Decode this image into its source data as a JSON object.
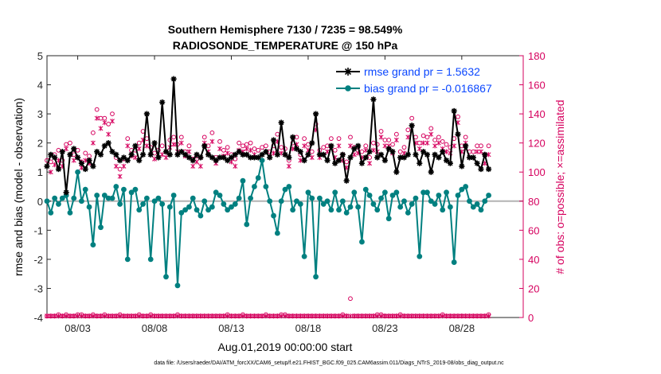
{
  "chart_data": {
    "type": "line",
    "title": "Southern Hemisphere 7130 / 7235 = 98.549%",
    "subtitle": "RADIOSONDE_TEMPERATURE @ 150 hPa",
    "xlabel": "Aug.01,2019 00:00:00 start",
    "ylabel_left": "rmse and bias (model - observation)",
    "ylabel_right": "# of obs: o=possible; ×=assimilated",
    "footer": "data file: /Users/raeder/DAI/ATM_forcXX/CAM6_setup/f.e21.FHIST_BGC.f09_025.CAM6assim.011/Diags_NTrS_2019-08/obs_diag_output.nc",
    "xlim": [
      1,
      32
    ],
    "ylim_left": [
      -4,
      5
    ],
    "ylim_right": [
      0,
      180
    ],
    "xtick_values": [
      3,
      8,
      13,
      18,
      23,
      28
    ],
    "xtick_labels": [
      "08/03",
      "08/08",
      "08/13",
      "08/18",
      "08/23",
      "08/28"
    ],
    "ytick_left": [
      "-4",
      "-3",
      "-2",
      "-1",
      "0",
      "1",
      "2",
      "3",
      "4",
      "5"
    ],
    "ytick_right": [
      "0",
      "20",
      "40",
      "60",
      "80",
      "100",
      "120",
      "140",
      "160",
      "180"
    ],
    "legend_position": "top-right",
    "colors": {
      "rmse": "#000000",
      "bias": "#008080",
      "obs": "#d6005e",
      "zero": "#b3b3b3",
      "legend_text": "#0b47ff"
    },
    "x_step_days": 0.25,
    "x_start": 1,
    "series": [
      {
        "name": "rmse grand pr = 1.5632",
        "axis": "left",
        "values": [
          1.2,
          1.6,
          1.5,
          1.1,
          1.7,
          0.3,
          1.6,
          1.8,
          1.5,
          1.3,
          1.1,
          1.4,
          1.2,
          1.7,
          1.6,
          1.9,
          2.0,
          1.7,
          1.6,
          1.4,
          1.5,
          1.4,
          1.6,
          1.9,
          1.4,
          1.6,
          3.0,
          1.6,
          2.0,
          1.5,
          3.4,
          1.7,
          1.6,
          4.2,
          1.6,
          1.7,
          1.6,
          1.5,
          1.4,
          1.6,
          1.5,
          1.9,
          1.6,
          1.5,
          1.4,
          1.5,
          1.5,
          1.4,
          1.5,
          1.6,
          1.7,
          1.6,
          1.6,
          1.5,
          1.5,
          1.5,
          1.6,
          1.7,
          1.5,
          2.1,
          1.6,
          2.7,
          1.6,
          1.5,
          2.2,
          1.8,
          1.7,
          1.4,
          1.6,
          2.0,
          3.0,
          1.6,
          1.6,
          1.4,
          1.9,
          1.3,
          1.4,
          1.6,
          0.7,
          1.5,
          1.8,
          1.9,
          1.3,
          1.5,
          1.7,
          3.5,
          1.5,
          1.6,
          1.4,
          1.8,
          1.7,
          1.0,
          1.5,
          1.5,
          1.6,
          2.6,
          1.6,
          1.3,
          1.7,
          1.6,
          1.0,
          1.6,
          1.5,
          1.7,
          1.4,
          1.3,
          3.1,
          2.3,
          1.2,
          1.9,
          1.5,
          1.5,
          1.3,
          1.1,
          1.6,
          1.1
        ]
      },
      {
        "name": "bias grand pr = -0.016867",
        "axis": "left",
        "values": [
          0.0,
          -0.4,
          0.1,
          -0.1,
          0.1,
          0.2,
          -0.4,
          0.1,
          1.0,
          0.0,
          0.4,
          -0.2,
          -1.5,
          0.2,
          -0.9,
          0.2,
          0.1,
          0.1,
          0.5,
          -0.1,
          0.4,
          -2.0,
          0.3,
          0.4,
          -0.3,
          -0.1,
          0.1,
          -2.0,
          0.0,
          0.1,
          -0.1,
          -2.6,
          -0.2,
          0.2,
          -2.9,
          -0.4,
          -0.3,
          -0.2,
          0.1,
          -0.3,
          -0.5,
          0.0,
          -0.3,
          -0.2,
          0.3,
          0.2,
          -0.1,
          -0.3,
          -0.2,
          -0.1,
          0.1,
          0.7,
          -0.8,
          0.1,
          0.5,
          0.8,
          1.4,
          0.5,
          0.0,
          -0.5,
          -1.1,
          0.0,
          0.4,
          0.5,
          -0.3,
          0.0,
          -0.1,
          -1.9,
          0.3,
          0.1,
          -2.6,
          0.1,
          -0.1,
          0.0,
          -0.3,
          0.3,
          -0.3,
          0.0,
          -0.4,
          -0.2,
          0.3,
          -0.2,
          -1.4,
          0.4,
          0.2,
          -0.1,
          -0.3,
          0.1,
          0.3,
          -0.6,
          0.2,
          0.3,
          -0.2,
          0.0,
          -0.4,
          -0.1,
          0.1,
          -1.9,
          0.3,
          0.3,
          0.0,
          -0.1,
          0.2,
          -0.3,
          0.3,
          -0.2,
          -2.1,
          0.2,
          0.4,
          0.5,
          0.0,
          -0.2,
          -0.1,
          -0.3,
          0.0,
          0.2
        ]
      }
    ],
    "obs_possible": [
      108,
      107,
      112,
      115,
      108,
      119,
      120,
      112,
      115,
      107,
      113,
      111,
      127,
      143,
      137,
      137,
      133,
      140,
      110,
      102,
      109,
      123,
      115,
      115,
      120,
      128,
      123,
      117,
      113,
      115,
      118,
      114,
      122,
      124,
      119,
      124,
      114,
      118,
      109,
      111,
      110,
      124,
      118,
      127,
      110,
      121,
      115,
      117,
      112,
      109,
      120,
      118,
      119,
      120,
      116,
      115,
      117,
      118,
      114,
      118,
      126,
      117,
      116,
      108,
      120,
      124,
      112,
      123,
      119,
      114,
      133,
      115,
      117,
      118,
      123,
      115,
      123,
      112,
      107,
      124,
      117,
      117,
      114,
      118,
      110,
      120,
      119,
      128,
      122,
      122,
      119,
      126,
      114,
      117,
      129,
      137,
      124,
      120,
      125,
      124,
      130,
      122,
      124,
      121,
      119,
      117,
      123,
      138,
      118,
      124,
      114,
      114,
      118,
      118,
      112,
      118
    ],
    "obs_assimilated": [
      104,
      100,
      105,
      108,
      104,
      116,
      112,
      108,
      110,
      103,
      108,
      106,
      120,
      137,
      130,
      134,
      126,
      135,
      104,
      97,
      104,
      118,
      111,
      110,
      116,
      122,
      118,
      112,
      109,
      110,
      112,
      110,
      117,
      119,
      114,
      120,
      111,
      114,
      104,
      107,
      104,
      120,
      114,
      121,
      106,
      116,
      111,
      113,
      107,
      104,
      115,
      114,
      116,
      115,
      112,
      110,
      112,
      114,
      110,
      113,
      121,
      113,
      112,
      104,
      116,
      119,
      108,
      118,
      115,
      110,
      129,
      110,
      112,
      114,
      118,
      110,
      118,
      108,
      103,
      118,
      112,
      113,
      110,
      115,
      106,
      115,
      114,
      124,
      118,
      118,
      113,
      122,
      110,
      113,
      124,
      132,
      120,
      116,
      120,
      120,
      126,
      118,
      120,
      116,
      114,
      113,
      118,
      134,
      114,
      120,
      110,
      110,
      114,
      114,
      106,
      112
    ],
    "obs_bottom_possible": [
      1,
      1,
      1,
      2,
      1,
      2,
      1,
      1,
      2,
      2,
      1,
      1,
      2,
      1,
      1,
      2,
      1,
      1,
      1,
      2,
      1,
      1,
      1,
      1,
      2,
      1,
      1,
      2,
      1,
      1,
      1,
      1,
      1,
      1,
      2,
      1,
      1,
      1,
      1,
      1,
      1,
      1,
      1,
      1,
      1,
      1,
      1,
      2,
      1,
      1,
      1,
      2,
      1,
      1,
      1,
      1,
      1,
      2,
      1,
      1,
      1,
      2,
      2,
      1,
      1,
      1,
      1,
      1,
      1,
      1,
      1,
      1,
      1,
      1,
      1,
      1,
      1,
      2,
      1,
      13,
      1,
      1,
      1,
      1,
      1,
      1,
      2,
      2,
      1,
      1,
      1,
      1,
      2,
      1,
      1,
      1,
      1,
      1,
      1,
      1,
      1,
      1,
      1,
      2,
      1,
      1,
      1,
      1,
      1,
      1,
      1,
      1,
      1,
      1,
      1,
      2
    ],
    "obs_bottom_assimilated": [
      1,
      1,
      1,
      1,
      1,
      1,
      1,
      1,
      1,
      1,
      1,
      1,
      1,
      1,
      1,
      1,
      1,
      1,
      1,
      1,
      1,
      1,
      1,
      1,
      1,
      1,
      1,
      1,
      1,
      1,
      1,
      1,
      1,
      1,
      1,
      1,
      1,
      1,
      1,
      1,
      1,
      1,
      1,
      1,
      1,
      1,
      1,
      1,
      1,
      1,
      1,
      1,
      1,
      1,
      1,
      1,
      1,
      1,
      1,
      1,
      1,
      1,
      1,
      1,
      1,
      1,
      1,
      1,
      1,
      1,
      1,
      1,
      1,
      1,
      1,
      1,
      1,
      1,
      1,
      1,
      1,
      1,
      1,
      1,
      1,
      1,
      1,
      1,
      1,
      1,
      1,
      1,
      1,
      1,
      1,
      1,
      1,
      1,
      1,
      1,
      1,
      1,
      1,
      1,
      1,
      1,
      1,
      1,
      1,
      1,
      1,
      1,
      1,
      1,
      1,
      1
    ]
  }
}
